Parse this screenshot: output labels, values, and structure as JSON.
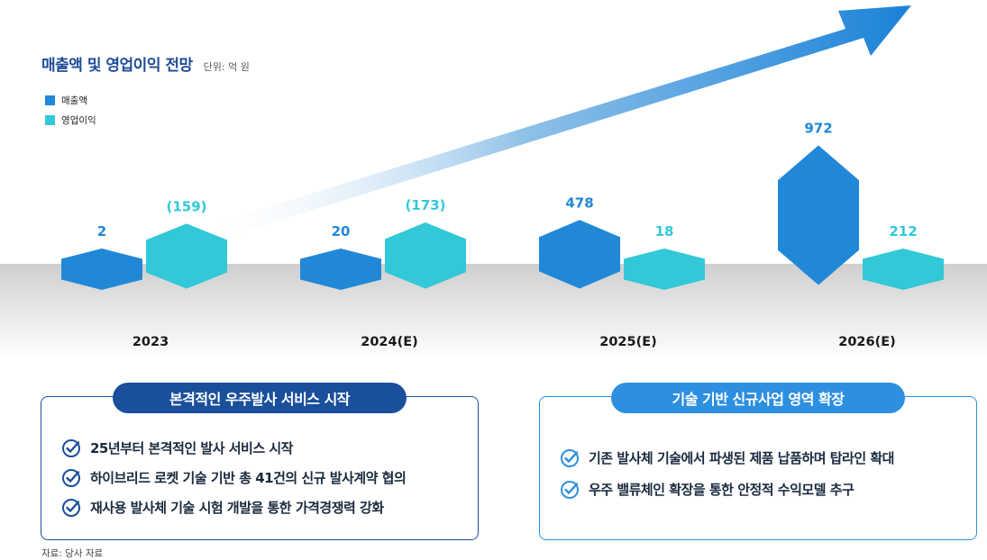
{
  "title": "매출액 및 영업이익 전망",
  "unit": "단위: 억 원",
  "legend": [
    {
      "name": "매출액",
      "color": "#2188d8"
    },
    {
      "name": "영업이익",
      "color": "#33c8d8"
    }
  ],
  "chart_data": {
    "type": "bar",
    "title": "매출액 및 영업이익 전망",
    "categories": [
      "2023",
      "2024(E)",
      "2025(E)",
      "2026(E)"
    ],
    "series": [
      {
        "name": "매출액",
        "values": [
          2,
          20,
          478,
          972
        ],
        "labels": [
          "2",
          "20",
          "478",
          "972"
        ],
        "color": "#2188d8"
      },
      {
        "name": "영업이익",
        "values": [
          -159,
          -173,
          18,
          212
        ],
        "labels": [
          "(159)",
          "(173)",
          "18",
          "212"
        ],
        "color": "#33c8d8"
      }
    ],
    "trend_arrow": "rising",
    "legend_position": "top-left"
  },
  "cards": [
    {
      "title": "본격적인 우주발사 서비스 시작",
      "items": [
        "25년부터 본격적인 발사 서비스 시작",
        "하이브리드 로켓 기술 기반 총 41건의 신규 발사계약 협의",
        "재사용 발사체 기술 시험 개발을 통한 가격경쟁력 강화"
      ]
    },
    {
      "title": "기술 기반 신규사업 영역 확장",
      "items": [
        "기존 발사체 기술에서 파생된 제품 납품하며 탑라인 확대",
        "우주 밸류체인 확장을 통한 안정적 수익모델 추구"
      ]
    }
  ],
  "source": "자료: 당사 자료",
  "icons": {
    "check": "check-circle-icon"
  },
  "colors": {
    "navy": "#1a4f9c",
    "blue": "#2d8fe0"
  }
}
